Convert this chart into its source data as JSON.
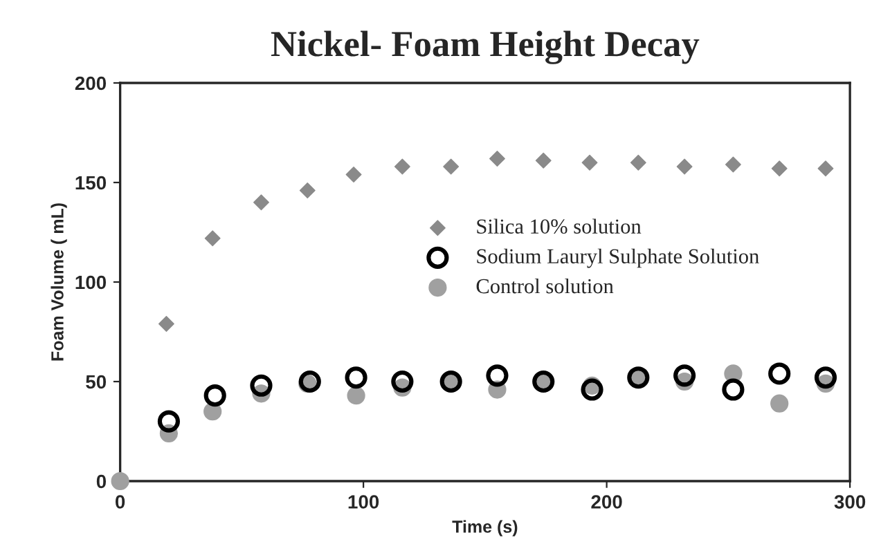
{
  "chart_data": {
    "type": "scatter",
    "title": "Nickel- Foam Height Decay",
    "xlabel": "Time (s)",
    "ylabel": "Foam Volume ( mL)",
    "xlim": [
      0,
      300
    ],
    "xticks": [
      0,
      100,
      200,
      300
    ],
    "ylim": [
      0,
      200
    ],
    "yticks": [
      0,
      50,
      100,
      150,
      200
    ],
    "grid": false,
    "legend": "right",
    "series": [
      {
        "name": "Silica 10% solution",
        "color": "#8a8a8a",
        "marker": "diamond",
        "x": [
          19,
          38,
          58,
          77,
          96,
          116,
          136,
          155,
          174,
          193,
          213,
          232,
          252,
          271,
          290
        ],
        "values": [
          79,
          122,
          140,
          146,
          154,
          158,
          158,
          162,
          161,
          160,
          160,
          158,
          159,
          157,
          157
        ]
      },
      {
        "name": "Sodium Lauryl Sulphate Solution",
        "color": "#000000",
        "marker": "circle",
        "x": [
          20,
          39,
          58,
          78,
          97,
          116,
          136,
          155,
          174,
          194,
          213,
          232,
          252,
          271,
          290
        ],
        "values": [
          30,
          43,
          48,
          50,
          52,
          50,
          50,
          53,
          50,
          46,
          52,
          53,
          46,
          54,
          52
        ]
      },
      {
        "name": "Control solution",
        "color": "#a0a0a0",
        "marker": "circle",
        "x": [
          0,
          20,
          38,
          58,
          77,
          97,
          116,
          136,
          155,
          174,
          194,
          213,
          232,
          252,
          271,
          290
        ],
        "values": [
          0,
          24,
          35,
          44,
          49,
          43,
          47,
          50,
          46,
          50,
          48,
          52,
          50,
          54,
          39,
          49
        ]
      }
    ]
  }
}
